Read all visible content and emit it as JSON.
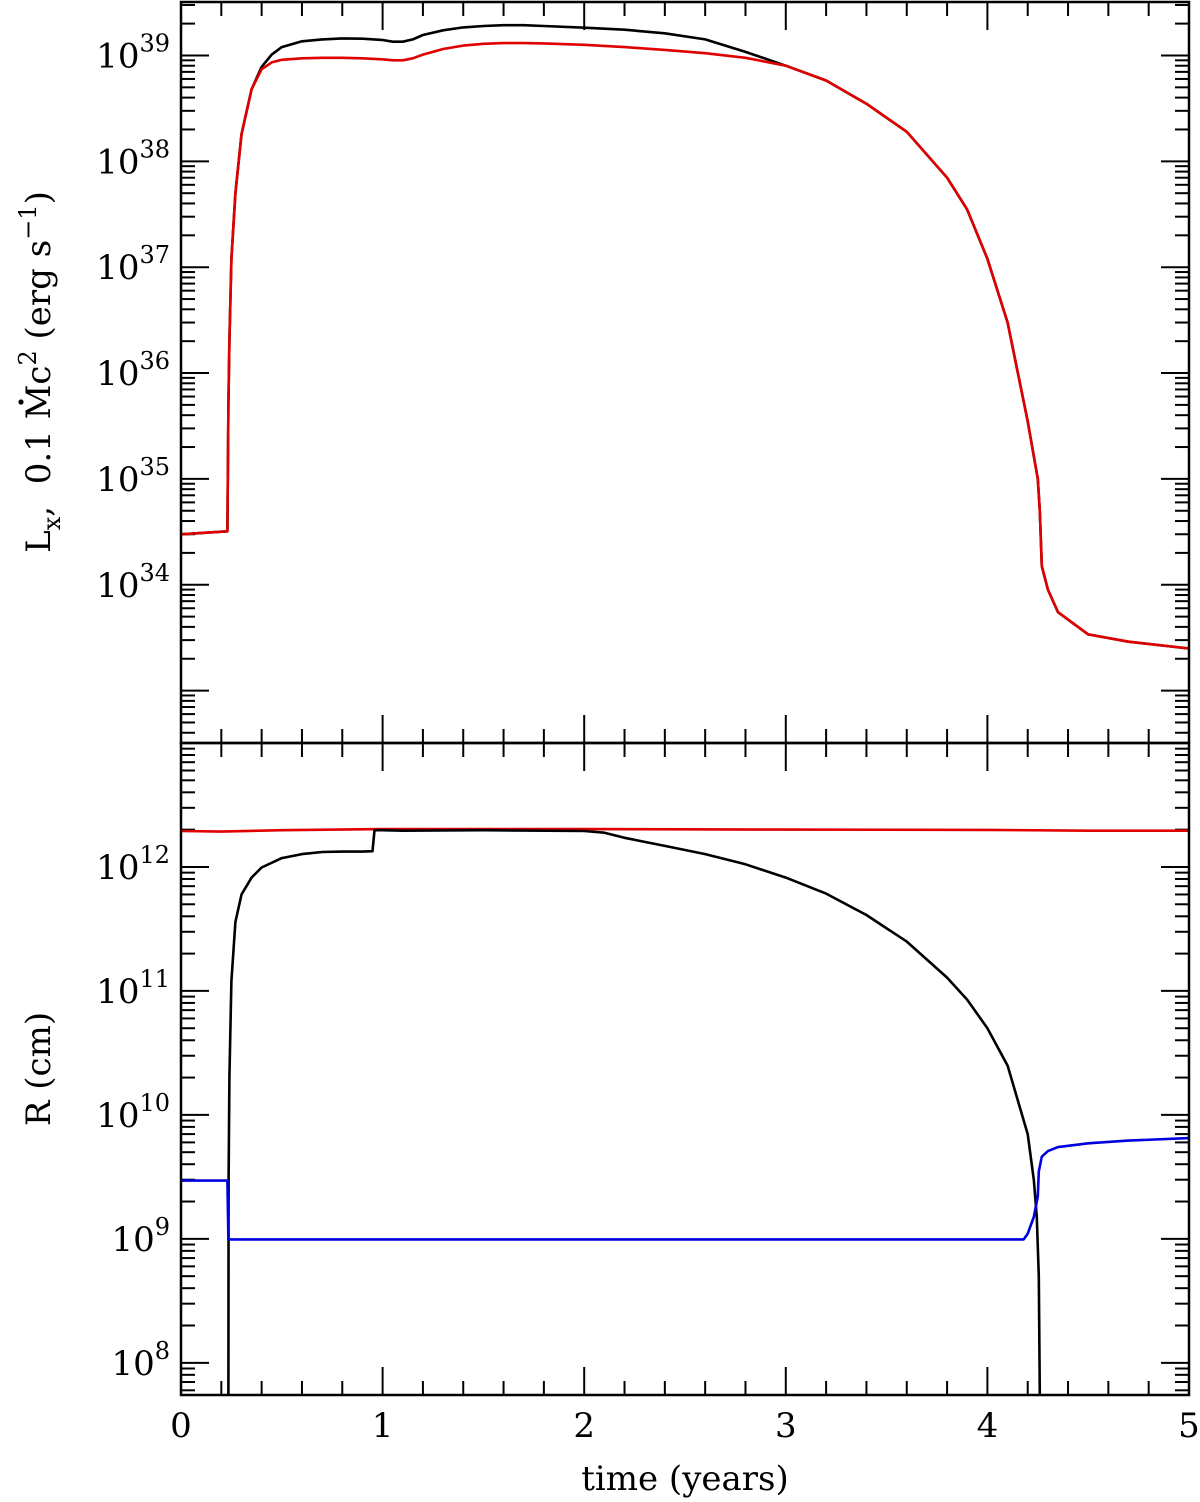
{
  "chart_data": [
    {
      "type": "line",
      "panel": "top",
      "ylabel_parts": {
        "l": "L",
        "l_sub": "x",
        "comma_text": ",  0.1 ",
        "mdot": "M",
        "c": "c",
        "c_exp": "2",
        "units": " (erg s",
        "units_exp": "−1",
        "close": ")"
      },
      "yscale": "log",
      "ylim": [
        3.2e+32,
        3.2e+39
      ],
      "ytick_labels": [
        {
          "value": 1e+34,
          "base": "10",
          "exp": "34"
        },
        {
          "value": 1e+35,
          "base": "10",
          "exp": "35"
        },
        {
          "value": 1e+36,
          "base": "10",
          "exp": "36"
        },
        {
          "value": 1e+37,
          "base": "10",
          "exp": "37"
        },
        {
          "value": 1e+38,
          "base": "10",
          "exp": "38"
        },
        {
          "value": 1e+39,
          "base": "10",
          "exp": "39"
        }
      ],
      "xlim": [
        0,
        5
      ],
      "series": [
        {
          "color": "#000000",
          "points": [
            [
              0,
              3e+34
            ],
            [
              0.23,
              3.2e+34
            ],
            [
              0.235,
              5e+35
            ],
            [
              0.24,
              2e+36
            ],
            [
              0.25,
              1.2e+37
            ],
            [
              0.27,
              5e+37
            ],
            [
              0.3,
              1.8e+38
            ],
            [
              0.35,
              4.8e+38
            ],
            [
              0.4,
              7.8e+38
            ],
            [
              0.45,
              1.02e+39
            ],
            [
              0.5,
              1.2e+39
            ],
            [
              0.6,
              1.36e+39
            ],
            [
              0.7,
              1.42e+39
            ],
            [
              0.8,
              1.45e+39
            ],
            [
              0.9,
              1.44e+39
            ],
            [
              1.0,
              1.4e+39
            ],
            [
              1.05,
              1.35e+39
            ],
            [
              1.1,
              1.35e+39
            ],
            [
              1.15,
              1.42e+39
            ],
            [
              1.2,
              1.56e+39
            ],
            [
              1.3,
              1.73e+39
            ],
            [
              1.4,
              1.84e+39
            ],
            [
              1.5,
              1.9e+39
            ],
            [
              1.6,
              1.93e+39
            ],
            [
              1.7,
              1.93e+39
            ],
            [
              1.8,
              1.9e+39
            ],
            [
              2.0,
              1.83e+39
            ],
            [
              2.2,
              1.75e+39
            ],
            [
              2.4,
              1.62e+39
            ],
            [
              2.6,
              1.42e+39
            ],
            [
              2.8,
              1.08e+39
            ],
            [
              3.0,
              8e+38
            ],
            [
              3.2,
              5.8e+38
            ],
            [
              3.4,
              3.5e+38
            ],
            [
              3.6,
              1.9e+38
            ],
            [
              3.8,
              7e+37
            ],
            [
              3.9,
              3.5e+37
            ],
            [
              4.0,
              1.2e+37
            ],
            [
              4.1,
              3e+36
            ],
            [
              4.2,
              3.5e+35
            ],
            [
              4.25,
              1e+35
            ],
            [
              4.26,
              5e+34
            ],
            [
              4.27,
              1.5e+34
            ],
            [
              4.3,
              9e+33
            ],
            [
              4.35,
              5.5e+33
            ],
            [
              4.5,
              3.4e+33
            ],
            [
              4.7,
              2.9e+33
            ],
            [
              5.0,
              2.5e+33
            ]
          ]
        },
        {
          "color": "#e00000",
          "points": [
            [
              0,
              3e+34
            ],
            [
              0.23,
              3.2e+34
            ],
            [
              0.235,
              5e+35
            ],
            [
              0.24,
              2e+36
            ],
            [
              0.25,
              1.2e+37
            ],
            [
              0.27,
              5e+37
            ],
            [
              0.3,
              1.8e+38
            ],
            [
              0.35,
              4.8e+38
            ],
            [
              0.4,
              7.4e+38
            ],
            [
              0.45,
              8.6e+38
            ],
            [
              0.5,
              9.1e+38
            ],
            [
              0.6,
              9.4e+38
            ],
            [
              0.7,
              9.5e+38
            ],
            [
              0.8,
              9.5e+38
            ],
            [
              0.9,
              9.4e+38
            ],
            [
              1.0,
              9.2e+38
            ],
            [
              1.05,
              9e+38
            ],
            [
              1.1,
              9e+38
            ],
            [
              1.15,
              9.4e+38
            ],
            [
              1.2,
              1.02e+39
            ],
            [
              1.3,
              1.15e+39
            ],
            [
              1.4,
              1.24e+39
            ],
            [
              1.5,
              1.29e+39
            ],
            [
              1.6,
              1.31e+39
            ],
            [
              1.7,
              1.31e+39
            ],
            [
              1.8,
              1.3e+39
            ],
            [
              2.0,
              1.26e+39
            ],
            [
              2.2,
              1.2e+39
            ],
            [
              2.4,
              1.13e+39
            ],
            [
              2.6,
              1.05e+39
            ],
            [
              2.8,
              9.5e+38
            ],
            [
              3.0,
              8e+38
            ],
            [
              3.2,
              5.8e+38
            ],
            [
              3.4,
              3.5e+38
            ],
            [
              3.6,
              1.9e+38
            ],
            [
              3.8,
              7e+37
            ],
            [
              3.9,
              3.5e+37
            ],
            [
              4.0,
              1.2e+37
            ],
            [
              4.1,
              3e+36
            ],
            [
              4.2,
              3.5e+35
            ],
            [
              4.25,
              1e+35
            ],
            [
              4.26,
              5e+34
            ],
            [
              4.27,
              1.5e+34
            ],
            [
              4.3,
              9e+33
            ],
            [
              4.35,
              5.5e+33
            ],
            [
              4.5,
              3.4e+33
            ],
            [
              4.7,
              2.9e+33
            ],
            [
              5.0,
              2.5e+33
            ]
          ]
        }
      ]
    },
    {
      "type": "line",
      "panel": "bottom",
      "ylabel": "R (cm)",
      "yscale": "log",
      "ylim": [
        55000000.0,
        10000000000000.0
      ],
      "ytick_labels": [
        {
          "value": 100000000.0,
          "base": "10",
          "exp": "8"
        },
        {
          "value": 1000000000.0,
          "base": "10",
          "exp": "9"
        },
        {
          "value": 10000000000.0,
          "base": "10",
          "exp": "10"
        },
        {
          "value": 100000000000.0,
          "base": "10",
          "exp": "11"
        },
        {
          "value": 1000000000000.0,
          "base": "10",
          "exp": "12"
        }
      ],
      "xlabel": "time (years)",
      "xlim": [
        0,
        5
      ],
      "xtick_labels": [
        "0",
        "1",
        "2",
        "3",
        "4",
        "5"
      ],
      "series": [
        {
          "color": "#e00000",
          "points": [
            [
              0,
              1950000000000.0
            ],
            [
              0.2,
              1930000000000.0
            ],
            [
              0.5,
              1980000000000.0
            ],
            [
              1.0,
              2020000000000.0
            ],
            [
              2.0,
              2020000000000.0
            ],
            [
              3.0,
              2000000000000.0
            ],
            [
              4.0,
              1990000000000.0
            ],
            [
              4.5,
              1960000000000.0
            ],
            [
              5.0,
              1960000000000.0
            ]
          ]
        },
        {
          "color": "#000000",
          "points": [
            [
              0.235,
              55000000.0
            ],
            [
              0.236,
              3000000000.0
            ],
            [
              0.24,
              20000000000.0
            ],
            [
              0.25,
              120000000000.0
            ],
            [
              0.27,
              360000000000.0
            ],
            [
              0.3,
              600000000000.0
            ],
            [
              0.35,
              820000000000.0
            ],
            [
              0.4,
              990000000000.0
            ],
            [
              0.5,
              1180000000000.0
            ],
            [
              0.6,
              1270000000000.0
            ],
            [
              0.7,
              1320000000000.0
            ],
            [
              0.8,
              1330000000000.0
            ],
            [
              0.9,
              1330000000000.0
            ],
            [
              0.95,
              1340000000000.0
            ],
            [
              0.96,
              1980000000000.0
            ],
            [
              1.0,
              1980000000000.0
            ],
            [
              1.1,
              1960000000000.0
            ],
            [
              1.5,
              1980000000000.0
            ],
            [
              2.0,
              1950000000000.0
            ],
            [
              2.1,
              1890000000000.0
            ],
            [
              2.2,
              1720000000000.0
            ],
            [
              2.4,
              1480000000000.0
            ],
            [
              2.6,
              1270000000000.0
            ],
            [
              2.8,
              1050000000000.0
            ],
            [
              3.0,
              820000000000.0
            ],
            [
              3.2,
              610000000000.0
            ],
            [
              3.4,
              410000000000.0
            ],
            [
              3.6,
              250000000000.0
            ],
            [
              3.8,
              128000000000.0
            ],
            [
              3.9,
              85000000000.0
            ],
            [
              4.0,
              50000000000.0
            ],
            [
              4.1,
              25000000000.0
            ],
            [
              4.2,
              7000000000.0
            ],
            [
              4.23,
              3000000000.0
            ],
            [
              4.245,
              1500000000.0
            ],
            [
              4.255,
              500000000.0
            ],
            [
              4.26,
              55000000.0
            ]
          ]
        },
        {
          "color": "#0000e0",
          "points": [
            [
              0,
              2950000000.0
            ],
            [
              0.23,
              2950000000.0
            ],
            [
              0.235,
              990000000.0
            ],
            [
              1.0,
              990000000.0
            ],
            [
              2.0,
              990000000.0
            ],
            [
              3.0,
              990000000.0
            ],
            [
              4.0,
              990000000.0
            ],
            [
              4.18,
              990000000.0
            ],
            [
              4.2,
              1100000000.0
            ],
            [
              4.23,
              1500000000.0
            ],
            [
              4.25,
              2200000000.0
            ],
            [
              4.255,
              3500000000.0
            ],
            [
              4.27,
              4600000000.0
            ],
            [
              4.3,
              5100000000.0
            ],
            [
              4.35,
              5500000000.0
            ],
            [
              4.5,
              5900000000.0
            ],
            [
              4.7,
              6200000000.0
            ],
            [
              5.0,
              6500000000.0
            ]
          ]
        }
      ]
    }
  ]
}
